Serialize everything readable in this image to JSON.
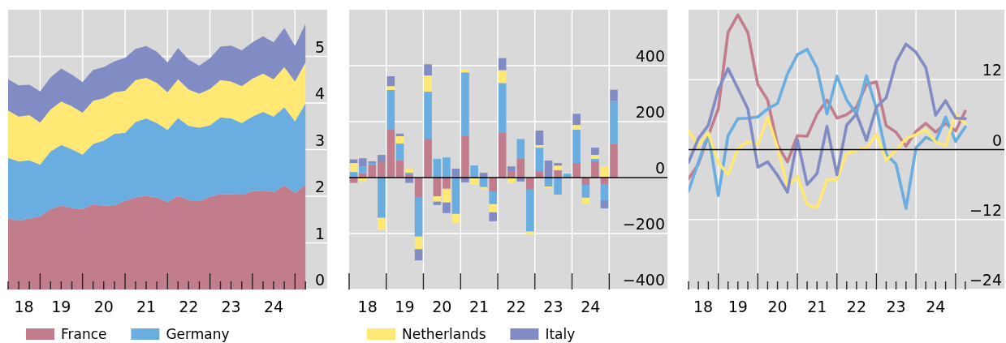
{
  "chart_data": [
    {
      "type": "area",
      "stacked": true,
      "grid": true,
      "legend": "bottom",
      "x": [
        "2018-04",
        "2018-07",
        "2018-10",
        "2019-01",
        "2019-04",
        "2019-07",
        "2019-10",
        "2020-01",
        "2020-04",
        "2020-07",
        "2020-10",
        "2021-01",
        "2021-04",
        "2021-07",
        "2021-10",
        "2022-01",
        "2022-04",
        "2022-07",
        "2022-10",
        "2023-01",
        "2023-04",
        "2023-07",
        "2023-10",
        "2024-01",
        "2024-04",
        "2024-07",
        "2024-10",
        "2025-01",
        "2025-04"
      ],
      "xlim": [
        "2018-04",
        "2025-10-05"
      ],
      "ylim": [
        0,
        6
      ],
      "yticks": [
        0,
        1,
        2,
        3,
        4,
        5
      ],
      "xticks": [
        {
          "value": "2018-08-15",
          "label": "18"
        },
        {
          "value": "2019-07",
          "label": "19"
        },
        {
          "value": "2020-07",
          "label": "20"
        },
        {
          "value": "2021-07",
          "label": "21"
        },
        {
          "value": "2022-07",
          "label": "22"
        },
        {
          "value": "2023-07",
          "label": "23"
        },
        {
          "value": "2024-07",
          "label": "24"
        },
        {
          "value": "2018-04",
          "label": null
        },
        {
          "value": "2018-07",
          "label": null
        },
        {
          "value": "2018-10",
          "label": null
        },
        {
          "value": "2019-01",
          "label": null
        },
        {
          "value": "2019-04",
          "label": null
        },
        {
          "value": "2019-07",
          "label": null
        },
        {
          "value": "2019-10",
          "label": null
        },
        {
          "value": "2020-01",
          "label": null
        },
        {
          "value": "2020-04",
          "label": null
        },
        {
          "value": "2020-07",
          "label": null
        },
        {
          "value": "2020-10",
          "label": null
        },
        {
          "value": "2021-01",
          "label": null
        },
        {
          "value": "2021-04",
          "label": null
        },
        {
          "value": "2021-07",
          "label": null
        },
        {
          "value": "2021-10",
          "label": null
        },
        {
          "value": "2022-01",
          "label": null
        },
        {
          "value": "2022-04",
          "label": null
        },
        {
          "value": "2022-07",
          "label": null
        },
        {
          "value": "2022-10",
          "label": null
        },
        {
          "value": "2023-01",
          "label": null
        },
        {
          "value": "2023-04",
          "label": null
        },
        {
          "value": "2023-07",
          "label": null
        },
        {
          "value": "2023-10",
          "label": null
        },
        {
          "value": "2024-01",
          "label": null
        },
        {
          "value": "2024-04",
          "label": null
        },
        {
          "value": "2024-07",
          "label": null
        },
        {
          "value": "2024-10",
          "label": null
        },
        {
          "value": "2025-01",
          "label": null
        },
        {
          "value": "2025-04",
          "label": null
        }
      ],
      "series": [
        {
          "name": "France",
          "color": "#c27d8d",
          "values": [
            1.52,
            1.48,
            1.52,
            1.57,
            1.72,
            1.8,
            1.75,
            1.72,
            1.83,
            1.79,
            1.81,
            1.9,
            1.98,
            2.01,
            1.97,
            1.88,
            2.01,
            1.92,
            1.89,
            1.99,
            2.05,
            2.04,
            2.03,
            2.11,
            2.12,
            2.09,
            2.23,
            2.07,
            2.25
          ]
        },
        {
          "name": "Germany",
          "color": "#6aade0",
          "values": [
            1.3,
            1.27,
            1.25,
            1.11,
            1.24,
            1.3,
            1.26,
            1.17,
            1.29,
            1.4,
            1.53,
            1.46,
            1.61,
            1.66,
            1.6,
            1.54,
            1.67,
            1.59,
            1.58,
            1.53,
            1.64,
            1.63,
            1.54,
            1.6,
            1.69,
            1.62,
            1.68,
            1.54,
            1.74
          ]
        },
        {
          "name": "Netherlands",
          "color": "#ffe873",
          "values": [
            1.02,
            0.96,
            0.97,
            0.9,
            0.9,
            0.93,
            0.92,
            0.9,
            0.93,
            0.91,
            0.89,
            0.9,
            0.9,
            0.87,
            0.86,
            0.81,
            0.83,
            0.78,
            0.73,
            0.78,
            0.8,
            0.79,
            0.79,
            0.81,
            0.82,
            0.8,
            0.86,
            0.85,
            0.88
          ]
        },
        {
          "name": "Italy",
          "color": "#818bc4",
          "values": [
            0.67,
            0.67,
            0.65,
            0.67,
            0.69,
            0.71,
            0.68,
            0.66,
            0.66,
            0.67,
            0.66,
            0.71,
            0.67,
            0.68,
            0.67,
            0.64,
            0.67,
            0.64,
            0.6,
            0.66,
            0.72,
            0.77,
            0.77,
            0.78,
            0.8,
            0.79,
            0.84,
            0.76,
            0.83
          ]
        }
      ]
    },
    {
      "type": "bar",
      "stacked": true,
      "grid": true,
      "x": [
        "2018-02-15",
        "2018-05-15",
        "2018-08-15",
        "2018-11-15",
        "2019-02-15",
        "2019-05-15",
        "2019-08-15",
        "2019-11-15",
        "2020-02-15",
        "2020-05-15",
        "2020-08-15",
        "2020-11-15",
        "2021-02-15",
        "2021-05-15",
        "2021-08-15",
        "2021-11-15",
        "2022-02-15",
        "2022-05-15",
        "2022-08-15",
        "2022-11-15",
        "2023-02-15",
        "2023-05-15",
        "2023-08-15",
        "2023-11-15",
        "2024-02-15",
        "2024-05-15",
        "2024-08-15",
        "2024-11-15",
        "2025-02-15"
      ],
      "xlim": [
        "2018-01",
        "2026-07-27"
      ],
      "ylim": [
        -400,
        600
      ],
      "yticks": [
        {
          "value": -400,
          "label": "−400"
        },
        {
          "value": -200,
          "label": "−200"
        },
        0,
        200,
        400
      ],
      "xticks": [
        {
          "value": "2018-07",
          "label": "18"
        },
        {
          "value": "2019-07",
          "label": "19"
        },
        {
          "value": "2020-07",
          "label": "20"
        },
        {
          "value": "2021-07",
          "label": "21"
        },
        {
          "value": "2022-07",
          "label": "22"
        },
        {
          "value": "2023-07",
          "label": "23"
        },
        {
          "value": "2024-07",
          "label": "24"
        },
        {
          "value": "2018-01",
          "label": null
        },
        {
          "value": "2019-01",
          "label": null
        },
        {
          "value": "2020-01",
          "label": null
        },
        {
          "value": "2021-01",
          "label": null
        },
        {
          "value": "2022-01",
          "label": null
        },
        {
          "value": "2023-01",
          "label": null
        },
        {
          "value": "2024-01",
          "label": null
        },
        {
          "value": "2025-01",
          "label": null
        }
      ],
      "ref_lines": [
        {
          "axis": "y",
          "value": 0,
          "color": "#000000"
        }
      ],
      "series": [
        {
          "color": "#c27d8d",
          "values": [
            -19,
            16,
            46,
            55,
            171,
            63,
            12,
            -72,
            139,
            -67,
            -40,
            5,
            150,
            0,
            0,
            -49,
            162,
            23,
            69,
            -43,
            23,
            0,
            26,
            0,
            52,
            -26,
            58,
            -23,
            121
          ]
        },
        {
          "color": "#6aade0",
          "values": [
            20,
            24,
            6,
            -144,
            142,
            59,
            6,
            -139,
            168,
            67,
            72,
            -130,
            226,
            43,
            -34,
            -46,
            176,
            0,
            69,
            -150,
            84,
            -32,
            -61,
            14,
            119,
            -46,
            9,
            -58,
            153
          ]
        },
        {
          "color": "#ffe873",
          "values": [
            32,
            -13,
            0,
            -43,
            14,
            26,
            14,
            -45,
            58,
            -19,
            -49,
            -32,
            12,
            -26,
            -6,
            -29,
            46,
            -20,
            0,
            -9,
            9,
            -6,
            17,
            0,
            17,
            -22,
            14,
            40,
            null
          ]
        },
        {
          "color": "#818bc4",
          "values": [
            13,
            29,
            6,
            26,
            35,
            9,
            -19,
            -40,
            40,
            -12,
            -38,
            27,
            -17,
            0,
            17,
            -32,
            43,
            17,
            -14,
            null,
            52,
            61,
            9,
            0,
            40,
            0,
            26,
            -29,
            40
          ]
        }
      ]
    },
    {
      "type": "line",
      "grid": true,
      "line_style": "solid",
      "x": [
        "2018-04",
        "2018-07",
        "2018-10",
        "2019-01",
        "2019-04",
        "2019-07",
        "2019-10",
        "2020-01",
        "2020-04",
        "2020-07",
        "2020-10",
        "2021-01",
        "2021-04",
        "2021-07",
        "2021-10",
        "2022-01",
        "2022-04",
        "2022-07",
        "2022-10",
        "2023-01",
        "2023-04",
        "2023-07",
        "2023-10",
        "2024-01",
        "2024-04",
        "2024-07",
        "2024-10",
        "2025-01",
        "2025-04"
      ],
      "xlim": [
        "2018-04",
        "2026-03-28"
      ],
      "ylim": [
        -24,
        24
      ],
      "yticks": [
        {
          "value": -24,
          "label": "−24"
        },
        {
          "value": -12,
          "label": "−12"
        },
        0,
        12
      ],
      "xticks": [
        {
          "value": "2018-08-15",
          "label": "18"
        },
        {
          "value": "2019-07",
          "label": "19"
        },
        {
          "value": "2020-07",
          "label": "20"
        },
        {
          "value": "2021-07",
          "label": "21"
        },
        {
          "value": "2022-07",
          "label": "22"
        },
        {
          "value": "2023-07",
          "label": "23"
        },
        {
          "value": "2024-07",
          "label": "24"
        },
        {
          "value": "2018-04",
          "label": null
        },
        {
          "value": "2018-07",
          "label": null
        },
        {
          "value": "2018-10",
          "label": null
        },
        {
          "value": "2019-01",
          "label": null
        },
        {
          "value": "2019-04",
          "label": null
        },
        {
          "value": "2019-07",
          "label": null
        },
        {
          "value": "2019-10",
          "label": null
        },
        {
          "value": "2020-01",
          "label": null
        },
        {
          "value": "2020-04",
          "label": null
        },
        {
          "value": "2020-07",
          "label": null
        },
        {
          "value": "2020-10",
          "label": null
        },
        {
          "value": "2021-01",
          "label": null
        },
        {
          "value": "2021-04",
          "label": null
        },
        {
          "value": "2021-07",
          "label": null
        },
        {
          "value": "2021-10",
          "label": null
        },
        {
          "value": "2022-01",
          "label": null
        },
        {
          "value": "2022-04",
          "label": null
        },
        {
          "value": "2022-07",
          "label": null
        },
        {
          "value": "2022-10",
          "label": null
        },
        {
          "value": "2023-01",
          "label": null
        },
        {
          "value": "2023-04",
          "label": null
        },
        {
          "value": "2023-07",
          "label": null
        },
        {
          "value": "2023-10",
          "label": null
        },
        {
          "value": "2024-01",
          "label": null
        },
        {
          "value": "2024-04",
          "label": null
        },
        {
          "value": "2024-07",
          "label": null
        },
        {
          "value": "2024-10",
          "label": null
        },
        {
          "value": "2025-01",
          "label": null
        },
        {
          "value": "2025-04",
          "label": null
        }
      ],
      "ref_lines": [
        {
          "axis": "y",
          "value": 0,
          "color": "#000000"
        }
      ],
      "series": [
        {
          "color": "#c27d8d",
          "values": [
            -5.0,
            -2.5,
            2.4,
            7.0,
            20.1,
            23.1,
            20.1,
            11.2,
            8.5,
            0.8,
            -2.1,
            2.4,
            2.3,
            6.1,
            8.5,
            5.4,
            6.0,
            7.3,
            11.2,
            11.6,
            4.1,
            3.0,
            0.6,
            3.1,
            4.5,
            3.0,
            4.5,
            3.2,
            6.6
          ]
        },
        {
          "color": "#6aade0",
          "values": [
            -7.1,
            -2.2,
            2.9,
            -7.9,
            2.4,
            5.3,
            5.4,
            5.6,
            7.0,
            7.9,
            13.0,
            16.3,
            17.2,
            14.0,
            6.1,
            12.6,
            8.5,
            6.1,
            12.7,
            7.0,
            -0.8,
            -2.5,
            -10.1,
            0.3,
            2.1,
            1.4,
            5.6,
            1.4,
            3.9
          ]
        },
        {
          "color": "#ffe873",
          "values": [
            3.3,
            0.6,
            2.9,
            -2.2,
            -4.3,
            0.2,
            1.4,
            0.8,
            5.6,
            0.3,
            -6.3,
            -4.6,
            -9.4,
            -10.0,
            -5.2,
            -5.1,
            -0.7,
            -0.1,
            0.3,
            2.6,
            -1.8,
            -0.1,
            1.9,
            2.6,
            3.4,
            1.3,
            0.6,
            6.1,
            4.5
          ]
        },
        {
          "color": "#818bc4",
          "values": [
            -2.2,
            1.9,
            4.2,
            10.3,
            13.9,
            10.5,
            7.0,
            -3.0,
            -2.1,
            -4.4,
            -7.3,
            1.7,
            -6.0,
            -4.1,
            4.0,
            -4.3,
            4.2,
            6.1,
            1.6,
            7.3,
            8.9,
            15.0,
            18.1,
            16.7,
            14.1,
            5.9,
            8.4,
            5.4,
            5.3
          ]
        }
      ]
    }
  ]
}
